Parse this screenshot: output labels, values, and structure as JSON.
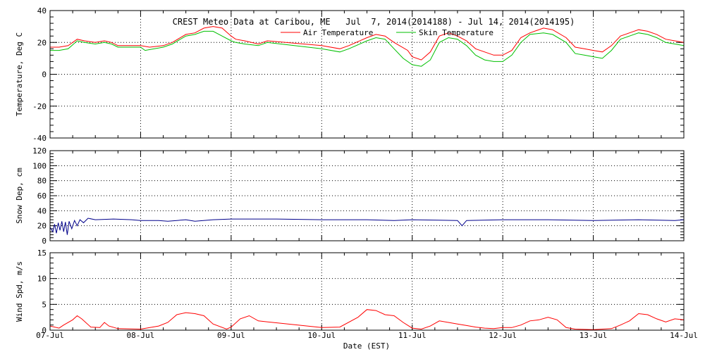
{
  "chart_data": {
    "title": "CREST Meteo Data at Caribou, ME   Jul  7, 2014(2014188) - Jul 14, 2014(2014195)",
    "xlabel": "Date (EST)",
    "x_tick_labels": [
      "07-Jul",
      "08-Jul",
      "09-Jul",
      "10-Jul",
      "11-Jul",
      "12-Jul",
      "13-Jul",
      "14-Jul"
    ],
    "x_range_days": [
      0,
      7
    ],
    "grid": true,
    "panels": [
      {
        "id": "temp",
        "type": "line",
        "ylabel": "Temperature, Deg C",
        "ylim": [
          -40,
          40
        ],
        "yticks": [
          -40,
          -20,
          0,
          20,
          40
        ],
        "legend_position": "top-center",
        "series": [
          {
            "name": "Air Temperature",
            "color": "#ff0000",
            "points": [
              [
                0,
                17
              ],
              [
                0.1,
                17
              ],
              [
                0.2,
                18
              ],
              [
                0.3,
                22
              ],
              [
                0.38,
                21
              ],
              [
                0.5,
                20
              ],
              [
                0.6,
                21
              ],
              [
                0.68,
                20
              ],
              [
                0.75,
                18
              ],
              [
                1.0,
                18
              ],
              [
                1.1,
                17
              ],
              [
                1.25,
                18
              ],
              [
                1.35,
                20
              ],
              [
                1.5,
                25
              ],
              [
                1.6,
                26
              ],
              [
                1.7,
                29
              ],
              [
                1.8,
                30
              ],
              [
                1.9,
                29
              ],
              [
                2.0,
                24
              ],
              [
                2.05,
                22
              ],
              [
                2.15,
                21
              ],
              [
                2.3,
                19
              ],
              [
                2.4,
                21
              ],
              [
                3.0,
                18
              ],
              [
                3.2,
                16
              ],
              [
                3.3,
                18
              ],
              [
                3.5,
                23
              ],
              [
                3.6,
                25
              ],
              [
                3.7,
                24
              ],
              [
                3.8,
                20
              ],
              [
                3.95,
                15
              ],
              [
                4.0,
                11
              ],
              [
                4.1,
                9
              ],
              [
                4.2,
                14
              ],
              [
                4.3,
                24
              ],
              [
                4.4,
                26
              ],
              [
                4.5,
                24
              ],
              [
                4.6,
                21
              ],
              [
                4.7,
                16
              ],
              [
                4.8,
                14
              ],
              [
                4.9,
                12
              ],
              [
                5.0,
                12
              ],
              [
                5.1,
                15
              ],
              [
                5.2,
                23
              ],
              [
                5.3,
                26
              ],
              [
                5.45,
                29
              ],
              [
                5.55,
                28
              ],
              [
                5.7,
                23
              ],
              [
                5.8,
                17
              ],
              [
                5.9,
                16
              ],
              [
                6.0,
                15
              ],
              [
                6.1,
                14
              ],
              [
                6.2,
                18
              ],
              [
                6.3,
                24
              ],
              [
                6.4,
                26
              ],
              [
                6.5,
                28
              ],
              [
                6.6,
                27
              ],
              [
                6.7,
                25
              ],
              [
                6.8,
                22
              ],
              [
                6.9,
                21
              ],
              [
                7.0,
                20
              ]
            ]
          },
          {
            "name": "Skin Temperature",
            "color": "#00c000",
            "points": [
              [
                0,
                15
              ],
              [
                0.1,
                15
              ],
              [
                0.2,
                16
              ],
              [
                0.3,
                21
              ],
              [
                0.38,
                20
              ],
              [
                0.5,
                19
              ],
              [
                0.6,
                20
              ],
              [
                0.68,
                19
              ],
              [
                0.75,
                17
              ],
              [
                1.0,
                17
              ],
              [
                1.05,
                15
              ],
              [
                1.25,
                17
              ],
              [
                1.35,
                19
              ],
              [
                1.5,
                24
              ],
              [
                1.6,
                25
              ],
              [
                1.7,
                27
              ],
              [
                1.8,
                27
              ],
              [
                1.9,
                24
              ],
              [
                2.0,
                21
              ],
              [
                2.05,
                20
              ],
              [
                2.15,
                19
              ],
              [
                2.3,
                18
              ],
              [
                2.4,
                20
              ],
              [
                3.0,
                16
              ],
              [
                3.2,
                14
              ],
              [
                3.3,
                16
              ],
              [
                3.5,
                21
              ],
              [
                3.6,
                23
              ],
              [
                3.7,
                22
              ],
              [
                3.8,
                16
              ],
              [
                3.9,
                10
              ],
              [
                4.0,
                6
              ],
              [
                4.1,
                5
              ],
              [
                4.2,
                9
              ],
              [
                4.3,
                20
              ],
              [
                4.4,
                23
              ],
              [
                4.5,
                22
              ],
              [
                4.6,
                18
              ],
              [
                4.7,
                12
              ],
              [
                4.8,
                9
              ],
              [
                4.9,
                8
              ],
              [
                5.0,
                8
              ],
              [
                5.1,
                12
              ],
              [
                5.2,
                20
              ],
              [
                5.3,
                25
              ],
              [
                5.45,
                26
              ],
              [
                5.55,
                25
              ],
              [
                5.7,
                20
              ],
              [
                5.8,
                13
              ],
              [
                5.9,
                12
              ],
              [
                6.0,
                11
              ],
              [
                6.1,
                10
              ],
              [
                6.2,
                15
              ],
              [
                6.3,
                22
              ],
              [
                6.4,
                24
              ],
              [
                6.5,
                26
              ],
              [
                6.6,
                25
              ],
              [
                6.7,
                23
              ],
              [
                6.8,
                20
              ],
              [
                6.9,
                19
              ],
              [
                7.0,
                18
              ]
            ]
          }
        ]
      },
      {
        "id": "snow",
        "type": "line",
        "ylabel": "Snow Dep, cm",
        "ylim": [
          0,
          120
        ],
        "yticks": [
          0,
          20,
          40,
          60,
          80,
          100,
          120
        ],
        "series": [
          {
            "color": "#00008b",
            "points": [
              [
                0,
                18
              ],
              [
                0.03,
                12
              ],
              [
                0.05,
                22
              ],
              [
                0.07,
                10
              ],
              [
                0.09,
                24
              ],
              [
                0.11,
                14
              ],
              [
                0.13,
                26
              ],
              [
                0.15,
                12
              ],
              [
                0.17,
                25
              ],
              [
                0.19,
                8
              ],
              [
                0.21,
                26
              ],
              [
                0.24,
                16
              ],
              [
                0.27,
                27
              ],
              [
                0.3,
                20
              ],
              [
                0.33,
                28
              ],
              [
                0.37,
                24
              ],
              [
                0.42,
                30
              ],
              [
                0.5,
                28
              ],
              [
                0.7,
                29
              ],
              [
                0.9,
                28
              ],
              [
                1.0,
                27
              ],
              [
                1.2,
                27
              ],
              [
                1.3,
                26
              ],
              [
                1.4,
                27
              ],
              [
                1.5,
                28
              ],
              [
                1.6,
                26
              ],
              [
                1.8,
                28
              ],
              [
                2.0,
                29
              ],
              [
                2.5,
                29
              ],
              [
                3.0,
                28
              ],
              [
                3.5,
                28
              ],
              [
                3.8,
                27
              ],
              [
                4.0,
                28
              ],
              [
                4.5,
                27
              ],
              [
                4.55,
                20
              ],
              [
                4.6,
                27
              ],
              [
                5.0,
                28
              ],
              [
                5.5,
                28
              ],
              [
                6.0,
                27
              ],
              [
                6.5,
                28
              ],
              [
                6.9,
                27
              ],
              [
                7.0,
                28
              ]
            ]
          }
        ]
      },
      {
        "id": "wind",
        "type": "line",
        "ylabel": "Wind Spd, m/s",
        "ylim": [
          0,
          15
        ],
        "yticks": [
          0,
          5,
          10,
          15
        ],
        "series": [
          {
            "color": "#ff0000",
            "points": [
              [
                0,
                0.8
              ],
              [
                0.1,
                0.4
              ],
              [
                0.15,
                1.0
              ],
              [
                0.25,
                2.0
              ],
              [
                0.3,
                2.8
              ],
              [
                0.35,
                2.2
              ],
              [
                0.45,
                0.6
              ],
              [
                0.55,
                0.5
              ],
              [
                0.6,
                1.5
              ],
              [
                0.65,
                0.8
              ],
              [
                0.75,
                0.3
              ],
              [
                1.0,
                0.2
              ],
              [
                1.2,
                0.8
              ],
              [
                1.3,
                1.5
              ],
              [
                1.4,
                3.0
              ],
              [
                1.5,
                3.4
              ],
              [
                1.6,
                3.2
              ],
              [
                1.7,
                2.8
              ],
              [
                1.8,
                1.2
              ],
              [
                1.95,
                0.2
              ],
              [
                2.0,
                0.6
              ],
              [
                2.1,
                2.2
              ],
              [
                2.2,
                2.8
              ],
              [
                2.3,
                1.8
              ],
              [
                3.0,
                0.5
              ],
              [
                3.2,
                0.6
              ],
              [
                3.4,
                2.5
              ],
              [
                3.5,
                4.0
              ],
              [
                3.6,
                3.8
              ],
              [
                3.7,
                3.0
              ],
              [
                3.8,
                2.8
              ],
              [
                3.9,
                1.5
              ],
              [
                4.0,
                0.4
              ],
              [
                4.1,
                0.2
              ],
              [
                4.2,
                0.8
              ],
              [
                4.3,
                1.8
              ],
              [
                4.4,
                1.5
              ],
              [
                4.5,
                1.2
              ],
              [
                4.6,
                0.9
              ],
              [
                4.7,
                0.6
              ],
              [
                4.8,
                0.4
              ],
              [
                4.9,
                0.3
              ],
              [
                5.0,
                0.5
              ],
              [
                5.1,
                0.5
              ],
              [
                5.2,
                1.0
              ],
              [
                5.3,
                1.8
              ],
              [
                5.4,
                2.0
              ],
              [
                5.5,
                2.5
              ],
              [
                5.6,
                2.0
              ],
              [
                5.7,
                0.5
              ],
              [
                5.8,
                0.2
              ],
              [
                6.0,
                0.1
              ],
              [
                6.2,
                0.3
              ],
              [
                6.3,
                1.0
              ],
              [
                6.4,
                1.8
              ],
              [
                6.5,
                3.2
              ],
              [
                6.6,
                3.0
              ],
              [
                6.7,
                2.2
              ],
              [
                6.8,
                1.6
              ],
              [
                6.9,
                2.2
              ],
              [
                7.0,
                2.0
              ]
            ]
          }
        ]
      }
    ]
  }
}
